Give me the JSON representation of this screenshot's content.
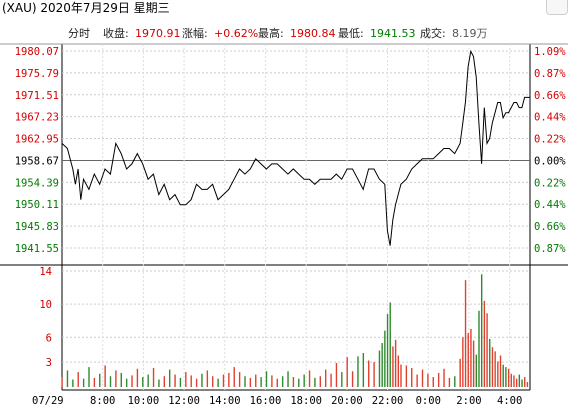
{
  "window": {
    "title": "(XAU) 2020年7月29日 星期三"
  },
  "infobar": {
    "timeshare_label": "分时",
    "close_label": "收盘:",
    "close_value": "1970.91",
    "change_label": "涨幅:",
    "change_value": "+0.62%",
    "high_label": "最高:",
    "high_value": "1980.84",
    "low_label": "最低:",
    "low_value": "1941.53",
    "volume_label": "成交:",
    "volume_value": "8.19万"
  },
  "colors": {
    "up": "#d40000",
    "down": "#007a00",
    "price_line": "#000000",
    "volume_up": "#e04030",
    "volume_down": "#2e8b2e"
  },
  "chart_data": {
    "type": "line",
    "price_ticks_left": [
      "1980.07",
      "1975.79",
      "1971.51",
      "1967.23",
      "1962.95",
      "1958.67",
      "1954.39",
      "1950.11",
      "1945.83",
      "1941.55"
    ],
    "percent_ticks_right": [
      "1.09%",
      "0.87%",
      "0.66%",
      "0.44%",
      "0.22%",
      "0.00%",
      "0.22%",
      "0.44%",
      "0.66%",
      "0.87%"
    ],
    "volume_ticks": [
      "14",
      "10",
      "6",
      "3"
    ],
    "x_ticks": [
      "07/29",
      "8:00",
      "10:00",
      "12:00",
      "14:00",
      "16:00",
      "18:00",
      "20:00",
      "22:00",
      "0:00",
      "2:00",
      "4:00"
    ],
    "y_range": [
      1941.55,
      1980.07
    ],
    "reference_price": 1958.67,
    "volume_range": [
      0,
      14
    ],
    "price_series": [
      [
        0,
        1962
      ],
      [
        2,
        1961
      ],
      [
        4,
        1957
      ],
      [
        5,
        1954
      ],
      [
        6,
        1957
      ],
      [
        7,
        1951
      ],
      [
        8,
        1955
      ],
      [
        10,
        1953
      ],
      [
        12,
        1956
      ],
      [
        14,
        1954
      ],
      [
        16,
        1957
      ],
      [
        18,
        1956
      ],
      [
        20,
        1962
      ],
      [
        22,
        1960
      ],
      [
        24,
        1957
      ],
      [
        26,
        1958
      ],
      [
        28,
        1960
      ],
      [
        30,
        1958
      ],
      [
        32,
        1955
      ],
      [
        34,
        1956
      ],
      [
        36,
        1952
      ],
      [
        38,
        1954
      ],
      [
        40,
        1951
      ],
      [
        42,
        1952
      ],
      [
        44,
        1950
      ],
      [
        46,
        1950
      ],
      [
        48,
        1951
      ],
      [
        50,
        1954
      ],
      [
        52,
        1953
      ],
      [
        54,
        1953
      ],
      [
        56,
        1954
      ],
      [
        58,
        1951
      ],
      [
        60,
        1952
      ],
      [
        62,
        1953
      ],
      [
        64,
        1955
      ],
      [
        66,
        1957
      ],
      [
        68,
        1956
      ],
      [
        70,
        1957
      ],
      [
        72,
        1959
      ],
      [
        74,
        1958
      ],
      [
        76,
        1957
      ],
      [
        78,
        1958
      ],
      [
        80,
        1958
      ],
      [
        82,
        1957
      ],
      [
        84,
        1956
      ],
      [
        86,
        1957
      ],
      [
        88,
        1956
      ],
      [
        90,
        1955
      ],
      [
        92,
        1955
      ],
      [
        94,
        1954
      ],
      [
        96,
        1955
      ],
      [
        98,
        1955
      ],
      [
        100,
        1955
      ],
      [
        102,
        1956
      ],
      [
        104,
        1955
      ],
      [
        106,
        1957
      ],
      [
        108,
        1957
      ],
      [
        110,
        1955
      ],
      [
        112,
        1953
      ],
      [
        114,
        1957
      ],
      [
        116,
        1957
      ],
      [
        118,
        1955
      ],
      [
        120,
        1954
      ],
      [
        121,
        1945
      ],
      [
        122,
        1942
      ],
      [
        123,
        1947
      ],
      [
        124,
        1950
      ],
      [
        126,
        1954
      ],
      [
        128,
        1955
      ],
      [
        130,
        1957
      ],
      [
        132,
        1958
      ],
      [
        134,
        1959
      ],
      [
        136,
        1959
      ],
      [
        138,
        1959
      ],
      [
        140,
        1960
      ],
      [
        142,
        1961
      ],
      [
        144,
        1961
      ],
      [
        146,
        1960
      ],
      [
        148,
        1962
      ],
      [
        149,
        1966
      ],
      [
        150,
        1970
      ],
      [
        151,
        1977
      ],
      [
        152,
        1980
      ],
      [
        153,
        1979
      ],
      [
        154,
        1975
      ],
      [
        155,
        1966
      ],
      [
        156,
        1958
      ],
      [
        157,
        1969
      ],
      [
        158,
        1962
      ],
      [
        159,
        1963
      ],
      [
        160,
        1966
      ],
      [
        161,
        1968
      ],
      [
        162,
        1970
      ],
      [
        163,
        1970
      ],
      [
        164,
        1967
      ],
      [
        165,
        1968
      ],
      [
        166,
        1968
      ],
      [
        167,
        1969
      ],
      [
        168,
        1970
      ],
      [
        169,
        1970
      ],
      [
        170,
        1969
      ],
      [
        171,
        1969
      ],
      [
        172,
        1971
      ],
      [
        174,
        1971
      ]
    ],
    "volume_series": [
      [
        0,
        1.2
      ],
      [
        2,
        2.0
      ],
      [
        4,
        0.9
      ],
      [
        6,
        1.8
      ],
      [
        8,
        1.0
      ],
      [
        10,
        2.4
      ],
      [
        12,
        1.1
      ],
      [
        14,
        1.6
      ],
      [
        16,
        2.6
      ],
      [
        18,
        1.3
      ],
      [
        20,
        2.0
      ],
      [
        22,
        1.7
      ],
      [
        24,
        1.0
      ],
      [
        26,
        1.4
      ],
      [
        28,
        2.2
      ],
      [
        30,
        1.2
      ],
      [
        32,
        1.5
      ],
      [
        34,
        2.3
      ],
      [
        36,
        0.9
      ],
      [
        38,
        1.3
      ],
      [
        40,
        2.1
      ],
      [
        42,
        1.5
      ],
      [
        44,
        1.1
      ],
      [
        46,
        1.8
      ],
      [
        48,
        1.4
      ],
      [
        50,
        1.0
      ],
      [
        52,
        1.6
      ],
      [
        54,
        2.0
      ],
      [
        56,
        1.3
      ],
      [
        58,
        1.0
      ],
      [
        60,
        1.5
      ],
      [
        62,
        1.7
      ],
      [
        64,
        2.4
      ],
      [
        66,
        1.8
      ],
      [
        68,
        1.3
      ],
      [
        70,
        1.1
      ],
      [
        72,
        1.5
      ],
      [
        74,
        1.2
      ],
      [
        76,
        1.9
      ],
      [
        78,
        1.4
      ],
      [
        80,
        1.0
      ],
      [
        82,
        1.3
      ],
      [
        84,
        1.9
      ],
      [
        86,
        1.2
      ],
      [
        88,
        1.0
      ],
      [
        90,
        1.5
      ],
      [
        92,
        2.0
      ],
      [
        94,
        1.1
      ],
      [
        96,
        1.3
      ],
      [
        98,
        2.1
      ],
      [
        100,
        1.6
      ],
      [
        102,
        2.9
      ],
      [
        104,
        1.8
      ],
      [
        106,
        3.6
      ],
      [
        108,
        1.9
      ],
      [
        110,
        3.7
      ],
      [
        112,
        4.1
      ],
      [
        114,
        3.2
      ],
      [
        116,
        3.0
      ],
      [
        118,
        4.4
      ],
      [
        119,
        5.3
      ],
      [
        120,
        6.8
      ],
      [
        121,
        8.8
      ],
      [
        122,
        10.2
      ],
      [
        123,
        4.9
      ],
      [
        124,
        5.7
      ],
      [
        125,
        3.8
      ],
      [
        126,
        2.7
      ],
      [
        128,
        2.6
      ],
      [
        130,
        2.3
      ],
      [
        132,
        1.5
      ],
      [
        134,
        2.1
      ],
      [
        136,
        1.6
      ],
      [
        138,
        1.2
      ],
      [
        140,
        1.7
      ],
      [
        142,
        2.2
      ],
      [
        144,
        1.1
      ],
      [
        146,
        1.3
      ],
      [
        148,
        3.4
      ],
      [
        149,
        6.0
      ],
      [
        150,
        12.9
      ],
      [
        151,
        6.5
      ],
      [
        152,
        7.0
      ],
      [
        153,
        5.6
      ],
      [
        154,
        3.9
      ],
      [
        155,
        9.2
      ],
      [
        156,
        13.6
      ],
      [
        157,
        10.4
      ],
      [
        158,
        8.9
      ],
      [
        159,
        5.8
      ],
      [
        160,
        4.8
      ],
      [
        161,
        4.3
      ],
      [
        162,
        3.1
      ],
      [
        163,
        3.8
      ],
      [
        164,
        2.7
      ],
      [
        165,
        2.4
      ],
      [
        166,
        2.2
      ],
      [
        167,
        1.6
      ],
      [
        168,
        1.4
      ],
      [
        169,
        1.0
      ],
      [
        170,
        1.5
      ],
      [
        171,
        0.9
      ],
      [
        172,
        1.2
      ],
      [
        173,
        0.6
      ]
    ]
  }
}
